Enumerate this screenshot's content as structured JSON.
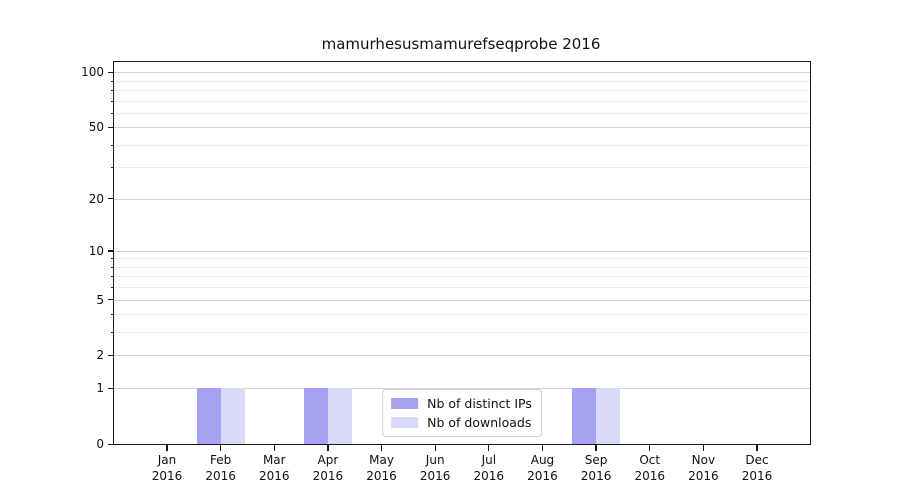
{
  "chart_data": {
    "type": "bar",
    "title": "mamurhesusmamurefseqprobe 2016",
    "categories": [
      "Jan",
      "Feb",
      "Mar",
      "Apr",
      "May",
      "Jun",
      "Jul",
      "Aug",
      "Sep",
      "Oct",
      "Nov",
      "Dec"
    ],
    "x_year_label": "2016",
    "series": [
      {
        "name": "Nb of distinct IPs",
        "color": "#a3a3f0",
        "values": [
          0,
          1,
          0,
          1,
          0,
          0,
          0,
          0,
          1,
          0,
          0,
          0
        ]
      },
      {
        "name": "Nb of downloads",
        "color": "#d9d9f8",
        "values": [
          0,
          1,
          0,
          1,
          0,
          0,
          0,
          0,
          1,
          0,
          0,
          0
        ]
      }
    ],
    "y_axis": {
      "scale": "log1p",
      "ylim": [
        0,
        113.5
      ],
      "major_ticks": [
        0,
        1,
        2,
        5,
        10,
        20,
        50,
        100
      ],
      "minor_ticks": [
        3,
        4,
        6,
        7,
        8,
        9,
        30,
        40,
        60,
        70,
        80,
        90
      ]
    },
    "grid": "horizontal",
    "legend_position": "lower center",
    "colors": {
      "major_grid": "#d4d4d4",
      "minor_grid": "#ebebeb",
      "spine": "#1a1a1a"
    }
  }
}
